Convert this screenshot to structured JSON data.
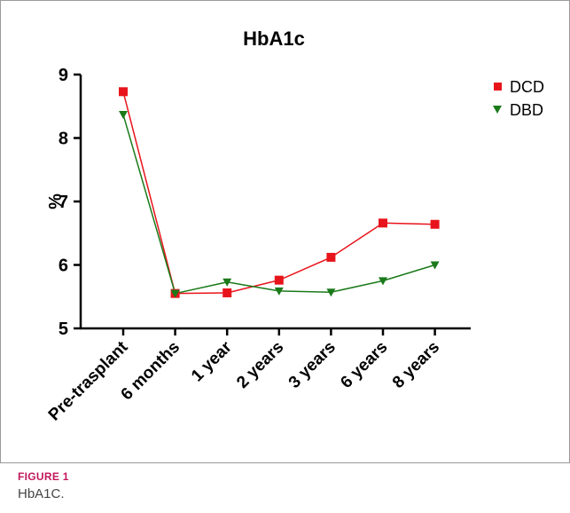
{
  "figure": {
    "label": "FIGURE 1",
    "caption": "HbA1C."
  },
  "chart_data": {
    "type": "line",
    "title": "HbA1c",
    "xlabel": "",
    "ylabel": "%",
    "categories": [
      "Pre-trasplant",
      "6 months",
      "1 year",
      "2 years",
      "3 years",
      "6 years",
      "8 years"
    ],
    "ylim": [
      5,
      9
    ],
    "yticks": [
      5,
      6,
      7,
      8,
      9
    ],
    "grid": false,
    "legend_position": "top-right",
    "series": [
      {
        "name": "DCD",
        "color": "#e8141b",
        "marker": "square",
        "values": [
          8.73,
          5.55,
          5.56,
          5.76,
          6.12,
          6.66,
          6.64
        ]
      },
      {
        "name": "DBD",
        "color": "#1a7a1a",
        "marker": "triangle-down",
        "values": [
          8.37,
          5.55,
          5.73,
          5.59,
          5.57,
          5.75,
          6.0
        ]
      }
    ]
  }
}
